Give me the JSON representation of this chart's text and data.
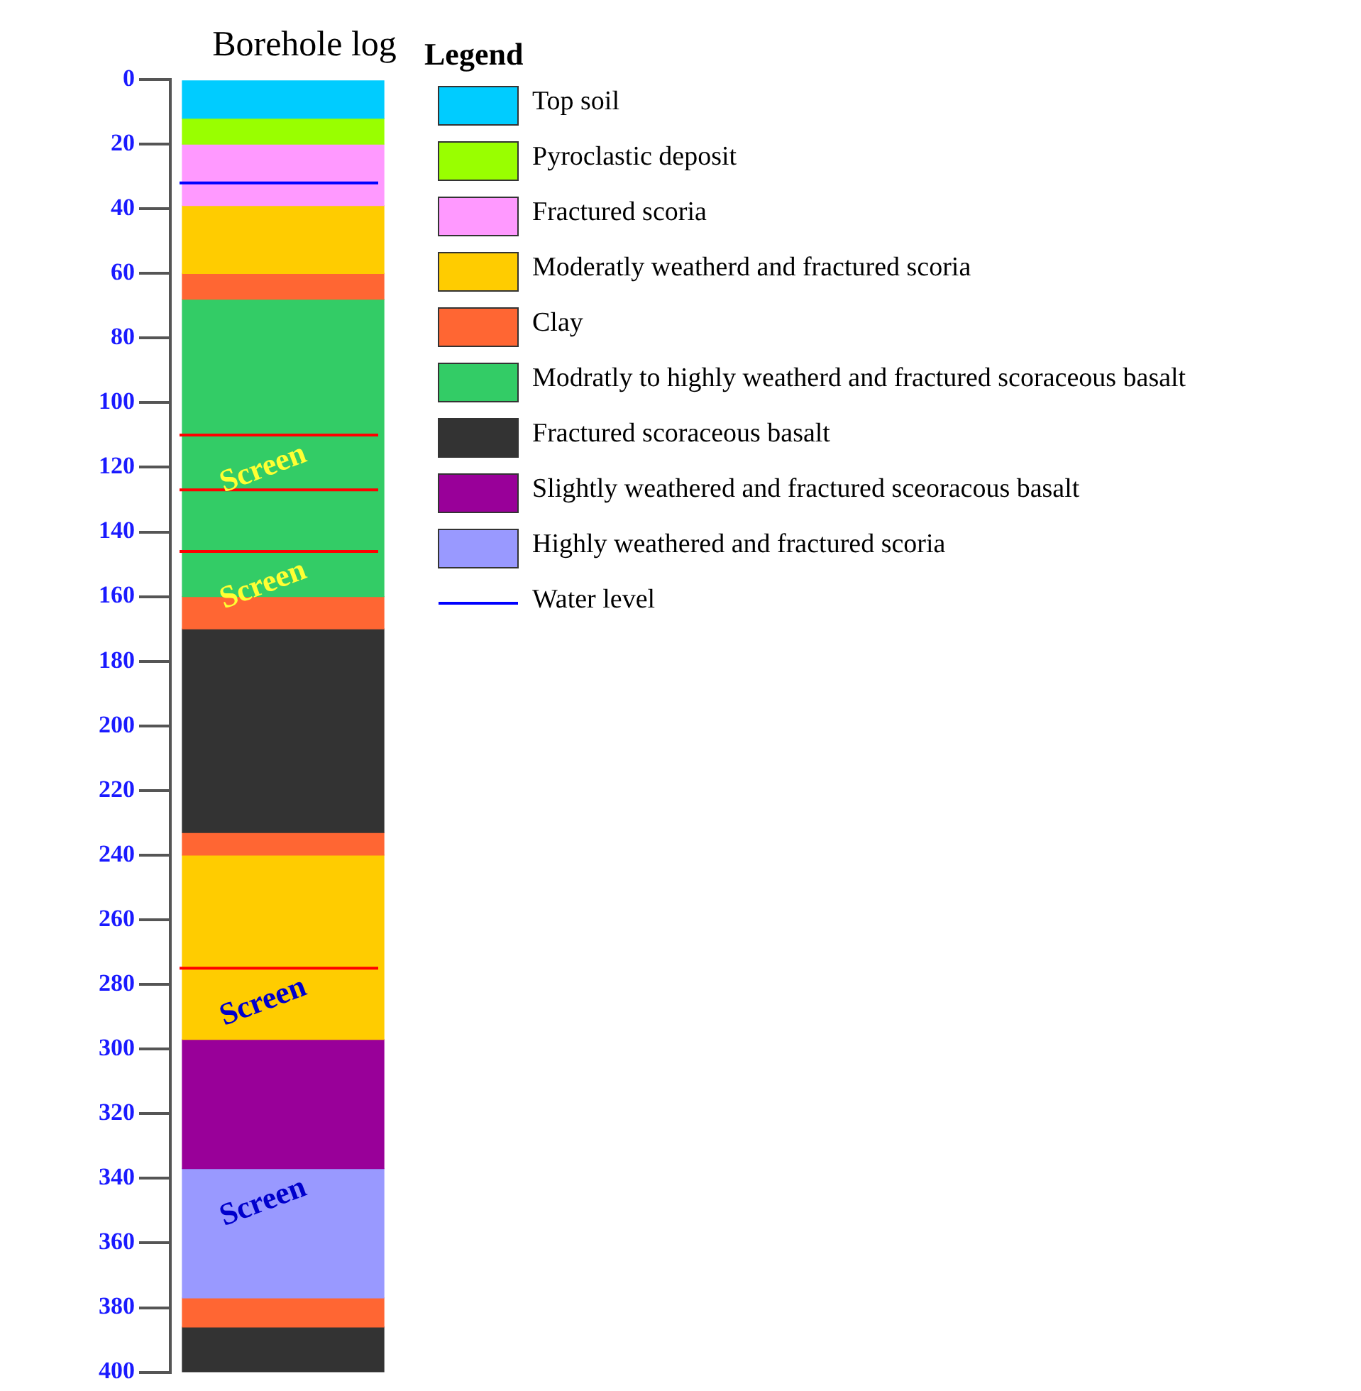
{
  "chart_data": {
    "type": "bar",
    "stacked": true,
    "title": "Borehole log",
    "legend_title": "Legend",
    "legend": "right",
    "grid": false,
    "tick_labels": "y",
    "categories": [
      null
    ],
    "ylim": [
      400,
      0
    ],
    "yticks": [
      0,
      20,
      40,
      60,
      80,
      100,
      120,
      140,
      160,
      180,
      200,
      220,
      240,
      260,
      280,
      300,
      320,
      340,
      360,
      380,
      400
    ],
    "series": [
      {
        "name": "Top soil",
        "color": "#00ccff",
        "values": [
          12
        ]
      },
      {
        "name": "Pyroclastic deposit",
        "color": "#99ff00",
        "values": [
          8
        ]
      },
      {
        "name": "Fractured scoria",
        "color": "#ff99ff",
        "values": [
          19
        ]
      },
      {
        "name": "Moderatly weatherd and fractured scoria",
        "color": "#ffcc00",
        "values": [
          21
        ]
      },
      {
        "name": "Clay",
        "color": "#ff6633",
        "values": [
          8
        ]
      },
      {
        "name": "Modratly to highly weatherd and fractured scoraceous basalt",
        "color": "#33cc66",
        "values": [
          92
        ]
      },
      {
        "color": "#ff6633",
        "values": [
          10
        ]
      },
      {
        "name": "Fractured scoraceous basalt",
        "color": "#333333",
        "values": [
          63
        ]
      },
      {
        "color": "#ff6633",
        "values": [
          7
        ]
      },
      {
        "color": "#ffcc00",
        "values": [
          57
        ]
      },
      {
        "name": "Slightly weathered and fractured sceoracous basalt",
        "color": "#990099",
        "values": [
          40
        ]
      },
      {
        "name": "Highly weathered and fractured scoria",
        "color": "#9999ff",
        "values": [
          40
        ]
      },
      {
        "color": "#ff6633",
        "values": [
          9
        ]
      },
      {
        "color": "#333333",
        "values": [
          14
        ]
      }
    ],
    "ref_lines": [
      {
        "axis": "y",
        "value": 32,
        "label": "Water level",
        "color": "#0000ff"
      },
      {
        "axis": "y",
        "value": 110,
        "color": "#ff0000"
      },
      {
        "axis": "y",
        "value": 127,
        "color": "#ff0000"
      },
      {
        "axis": "y",
        "value": 146,
        "color": "#ff0000"
      },
      {
        "axis": "y",
        "value": 275,
        "color": "#ff0000"
      }
    ],
    "annotations": [
      {
        "text": "Screen",
        "y": 110
      },
      {
        "text": "Screen",
        "y": 146
      },
      {
        "text": "Screen",
        "y": 275
      },
      {
        "text": "Screen",
        "y": 337
      }
    ]
  }
}
